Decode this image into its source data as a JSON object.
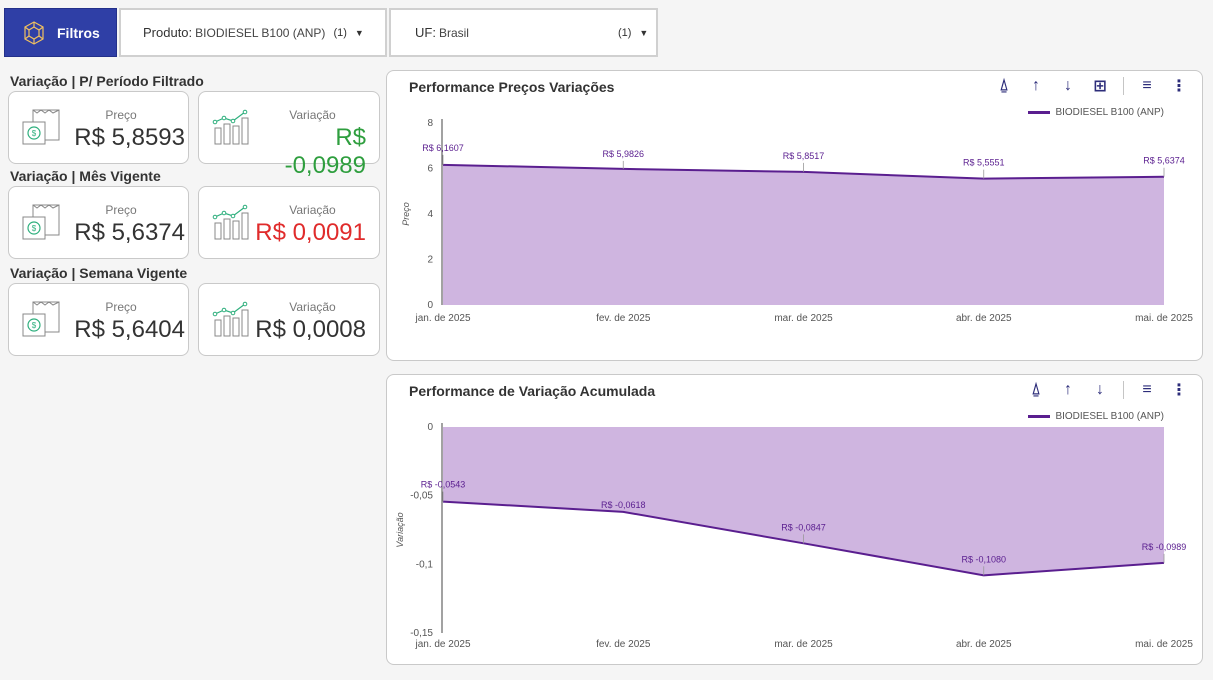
{
  "topbar": {
    "filtros_label": "Filtros",
    "produto_label": "Produto:",
    "produto_value": "BIODIESEL B100 (ANP)",
    "produto_count": "(1)",
    "uf_label": "UF:",
    "uf_value": "Brasil",
    "uf_count": "(1)"
  },
  "colors": {
    "brand": "#2f3fa6",
    "positive": "#2e9e3e",
    "negative": "#e02b2b",
    "series": "#5a1e8f",
    "area": "#cfb5e0"
  },
  "sections": [
    {
      "title": "Variação | P/ Período Filtrado",
      "preco_label": "Preço",
      "preco_value": "R$ 5,8593",
      "var_label": "Variação",
      "var_value": "R$ -0,0989",
      "var_color": "#2e9e3e"
    },
    {
      "title": "Variação | Mês Vigente",
      "preco_label": "Preço",
      "preco_value": "R$ 5,6374",
      "var_label": "Variação",
      "var_value": "R$ 0,0091",
      "var_color": "#e02b2b"
    },
    {
      "title": "Variação | Semana Vigente",
      "preco_label": "Preço",
      "preco_value": "R$ 5,6404",
      "var_label": "Variação",
      "var_value": "R$ 0,0008",
      "var_color": "#333333"
    }
  ],
  "icons": {
    "filtros": "network-icon",
    "preco": "money-document-icon",
    "variacao": "bar-chart-growth-icon",
    "toolbar": [
      "drill-up-icon",
      "arrow-up-icon",
      "arrow-down-icon",
      "expand-hierarchy-icon",
      "filter-icon",
      "more-options-icon"
    ]
  },
  "chart_data": [
    {
      "type": "area",
      "title": "Performance Preços Variações",
      "xlabel": "",
      "ylabel": "Preço",
      "categories": [
        "jan. de 2025",
        "fev. de 2025",
        "mar. de 2025",
        "abr. de 2025",
        "mai. de 2025"
      ],
      "series": [
        {
          "name": "BIODIESEL B100 (ANP)",
          "values": [
            6.1607,
            5.9826,
            5.8517,
            5.5551,
            5.6374
          ],
          "labels": [
            "R$ 6,1607",
            "R$ 5,9826",
            "R$ 5,8517",
            "R$ 5,5551",
            "R$ 5,6374"
          ]
        }
      ],
      "ylim": [
        0,
        8
      ],
      "yticks": [
        0,
        2,
        4,
        6,
        8
      ],
      "ytick_labels": [
        "0",
        "2",
        "4",
        "6",
        "8"
      ],
      "legend": "top-right",
      "grid": false
    },
    {
      "type": "area",
      "title": "Performance de Variação Acumulada",
      "xlabel": "",
      "ylabel": "Variação",
      "categories": [
        "jan. de 2025",
        "fev. de 2025",
        "mar. de 2025",
        "abr. de 2025",
        "mai. de 2025"
      ],
      "series": [
        {
          "name": "BIODIESEL B100 (ANP)",
          "values": [
            -0.0543,
            -0.0618,
            -0.0847,
            -0.108,
            -0.0989
          ],
          "labels": [
            "R$ -0,0543",
            "R$ -0,0618",
            "R$ -0,0847",
            "R$ -0,1080",
            "R$ -0,0989"
          ]
        }
      ],
      "ylim": [
        -0.15,
        0
      ],
      "yticks": [
        0,
        -0.05,
        -0.1,
        -0.15
      ],
      "ytick_labels": [
        "0",
        "-0,05",
        "-0,1",
        "-0,15"
      ],
      "legend": "top-right",
      "grid": false
    }
  ]
}
